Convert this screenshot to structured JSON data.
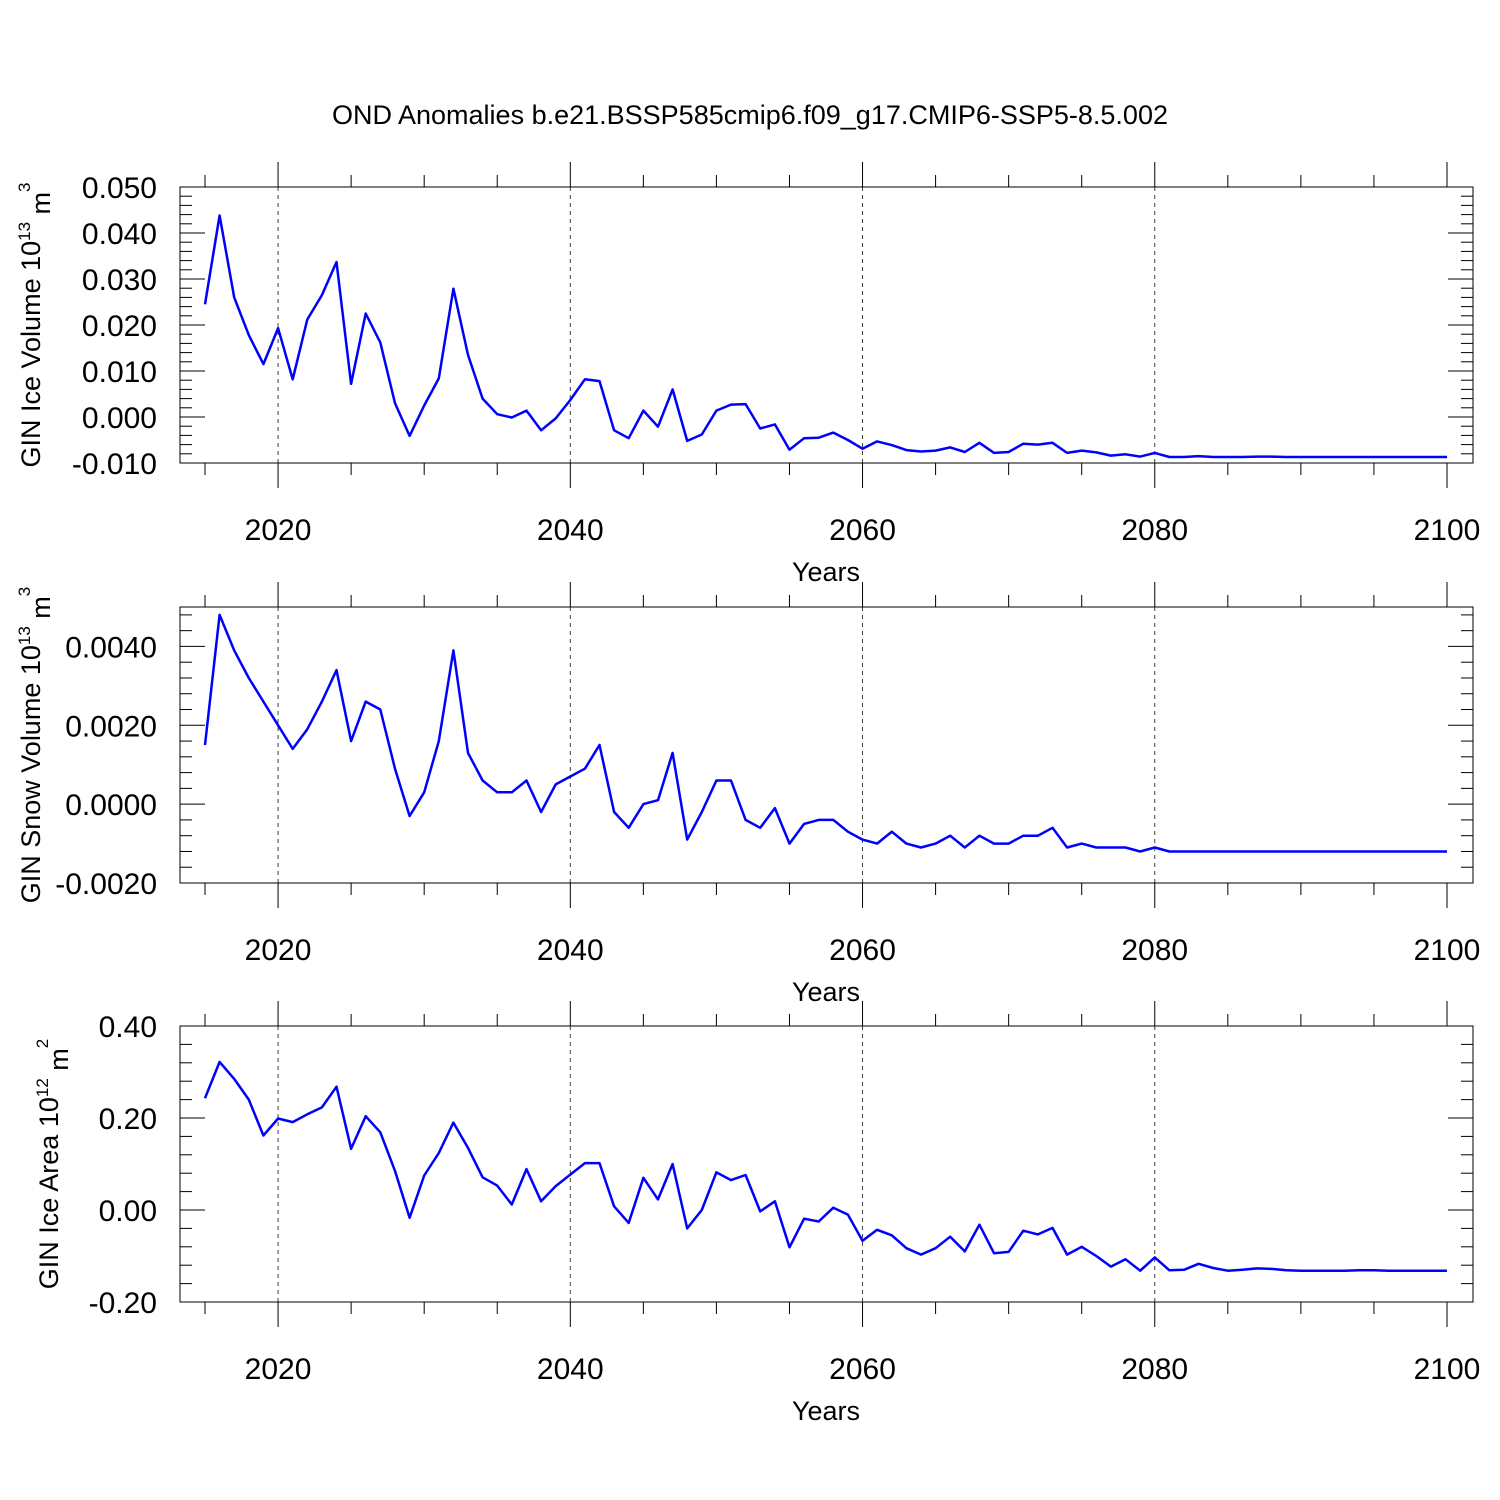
{
  "title": "OND Anomalies b.e21.BSSP585cmip6.f09_g17.CMIP6-SSP5-8.5.002",
  "line_color": "#0000ff",
  "chart_data": [
    {
      "type": "line",
      "ylabel": "GIN Ice Volume 10",
      "ylabel_exp": "13",
      "ylabel_unit": " m",
      "ylabel_unit_exp": "3",
      "xlabel": "Years",
      "xlim": [
        2015,
        2100
      ],
      "ylim": [
        -0.01,
        0.05
      ],
      "xticks": [
        2020,
        2040,
        2060,
        2080,
        2100
      ],
      "xtick_labels": [
        "2020",
        "2040",
        "2060",
        "2080",
        "2100"
      ],
      "yticks": [
        -0.01,
        0.0,
        0.01,
        0.02,
        0.03,
        0.04,
        0.05
      ],
      "ytick_labels": [
        "-0.010",
        "0.000",
        "0.010",
        "0.020",
        "0.030",
        "0.040",
        "0.050"
      ],
      "grid": "vertical dashed at major x ticks",
      "x": [
        2015,
        2016,
        2017,
        2018,
        2019,
        2020,
        2021,
        2022,
        2023,
        2024,
        2025,
        2026,
        2027,
        2028,
        2029,
        2030,
        2031,
        2032,
        2033,
        2034,
        2035,
        2036,
        2037,
        2038,
        2039,
        2040,
        2041,
        2042,
        2043,
        2044,
        2045,
        2046,
        2047,
        2048,
        2049,
        2050,
        2051,
        2052,
        2053,
        2054,
        2055,
        2056,
        2057,
        2058,
        2059,
        2060,
        2061,
        2062,
        2063,
        2064,
        2065,
        2066,
        2067,
        2068,
        2069,
        2070,
        2071,
        2072,
        2073,
        2074,
        2075,
        2076,
        2077,
        2078,
        2079,
        2080,
        2081,
        2082,
        2083,
        2084,
        2085,
        2086,
        2087,
        2088,
        2089,
        2090,
        2091,
        2092,
        2093,
        2094,
        2095,
        2096,
        2097,
        2098,
        2099,
        2100
      ],
      "values": [
        0.0245,
        0.0438,
        0.026,
        0.0178,
        0.0115,
        0.0193,
        0.0082,
        0.0212,
        0.0265,
        0.0337,
        0.0072,
        0.0225,
        0.0162,
        0.003,
        -0.0041,
        0.0025,
        0.0084,
        0.0279,
        0.0135,
        0.004,
        0.0006,
        -0.0001,
        0.0014,
        -0.0029,
        -0.0003,
        0.0037,
        0.0082,
        0.0078,
        -0.0029,
        -0.0046,
        0.0014,
        -0.0021,
        0.006,
        -0.0052,
        -0.0038,
        0.0014,
        0.0027,
        0.0028,
        -0.0025,
        -0.0016,
        -0.0071,
        -0.0046,
        -0.0045,
        -0.0034,
        -0.005,
        -0.0069,
        -0.0053,
        -0.0061,
        -0.0072,
        -0.0075,
        -0.0073,
        -0.0066,
        -0.0076,
        -0.0056,
        -0.0078,
        -0.0076,
        -0.0058,
        -0.006,
        -0.0056,
        -0.0078,
        -0.0073,
        -0.0077,
        -0.0084,
        -0.0081,
        -0.0086,
        -0.0078,
        -0.0087,
        -0.0087,
        -0.0085,
        -0.0087,
        -0.0087,
        -0.0087,
        -0.0086,
        -0.0086,
        -0.0087,
        -0.0087,
        -0.0087,
        -0.0087,
        -0.0087,
        -0.0087,
        -0.0087,
        -0.0087,
        -0.0087,
        -0.0087,
        -0.0087,
        -0.0087
      ]
    },
    {
      "type": "line",
      "ylabel": "GIN Snow Volume 10",
      "ylabel_exp": "13",
      "ylabel_unit": " m",
      "ylabel_unit_exp": "3",
      "xlabel": "Years",
      "xlim": [
        2015,
        2100
      ],
      "ylim": [
        -0.002,
        0.005
      ],
      "xticks": [
        2020,
        2040,
        2060,
        2080,
        2100
      ],
      "xtick_labels": [
        "2020",
        "2040",
        "2060",
        "2080",
        "2100"
      ],
      "yticks": [
        -0.002,
        0.0,
        0.002,
        0.004
      ],
      "ytick_labels": [
        "-0.0020",
        "0.0000",
        "0.0020",
        "0.0040"
      ],
      "grid": "vertical dashed at major x ticks",
      "x": [
        2015,
        2016,
        2017,
        2018,
        2019,
        2020,
        2021,
        2022,
        2023,
        2024,
        2025,
        2026,
        2027,
        2028,
        2029,
        2030,
        2031,
        2032,
        2033,
        2034,
        2035,
        2036,
        2037,
        2038,
        2039,
        2040,
        2041,
        2042,
        2043,
        2044,
        2045,
        2046,
        2047,
        2048,
        2049,
        2050,
        2051,
        2052,
        2053,
        2054,
        2055,
        2056,
        2057,
        2058,
        2059,
        2060,
        2061,
        2062,
        2063,
        2064,
        2065,
        2066,
        2067,
        2068,
        2069,
        2070,
        2071,
        2072,
        2073,
        2074,
        2075,
        2076,
        2077,
        2078,
        2079,
        2080,
        2081,
        2082,
        2083,
        2084,
        2085,
        2086,
        2087,
        2088,
        2089,
        2090,
        2091,
        2092,
        2093,
        2094,
        2095,
        2096,
        2097,
        2098,
        2099,
        2100
      ],
      "values": [
        0.0015,
        0.0048,
        0.0039,
        0.0032,
        0.0026,
        0.002,
        0.0014,
        0.0019,
        0.0026,
        0.0034,
        0.0016,
        0.0026,
        0.0024,
        0.0009,
        -0.0003,
        0.0003,
        0.0016,
        0.0039,
        0.0013,
        0.0006,
        0.0003,
        0.0003,
        0.0006,
        -0.0002,
        0.0005,
        0.0007,
        0.0009,
        0.0015,
        -0.0002,
        -0.0006,
        0.0,
        0.0001,
        0.0013,
        -0.0009,
        -0.0002,
        0.0006,
        0.0006,
        -0.0004,
        -0.0006,
        -0.0001,
        -0.001,
        -0.0005,
        -0.0004,
        -0.0004,
        -0.0007,
        -0.0009,
        -0.001,
        -0.0007,
        -0.001,
        -0.0011,
        -0.001,
        -0.0008,
        -0.0011,
        -0.0008,
        -0.001,
        -0.001,
        -0.0008,
        -0.0008,
        -0.0006,
        -0.0011,
        -0.001,
        -0.0011,
        -0.0011,
        -0.0011,
        -0.0012,
        -0.0011,
        -0.0012,
        -0.0012,
        -0.0012,
        -0.0012,
        -0.0012,
        -0.0012,
        -0.0012,
        -0.0012,
        -0.0012,
        -0.0012,
        -0.0012,
        -0.0012,
        -0.0012,
        -0.0012,
        -0.0012,
        -0.0012,
        -0.0012,
        -0.0012,
        -0.0012,
        -0.0012
      ]
    },
    {
      "type": "line",
      "ylabel": "GIN Ice Area 10",
      "ylabel_exp": "12",
      "ylabel_unit": " m",
      "ylabel_unit_exp": "2",
      "xlabel": "Years",
      "xlim": [
        2015,
        2100
      ],
      "ylim": [
        -0.2,
        0.4
      ],
      "xticks": [
        2020,
        2040,
        2060,
        2080,
        2100
      ],
      "xtick_labels": [
        "2020",
        "2040",
        "2060",
        "2080",
        "2100"
      ],
      "yticks": [
        -0.2,
        0.0,
        0.2,
        0.4
      ],
      "ytick_labels": [
        "-0.20",
        "0.00",
        "0.20",
        "0.40"
      ],
      "grid": "vertical dashed at major x ticks",
      "x": [
        2015,
        2016,
        2017,
        2018,
        2019,
        2020,
        2021,
        2022,
        2023,
        2024,
        2025,
        2026,
        2027,
        2028,
        2029,
        2030,
        2031,
        2032,
        2033,
        2034,
        2035,
        2036,
        2037,
        2038,
        2039,
        2040,
        2041,
        2042,
        2043,
        2044,
        2045,
        2046,
        2047,
        2048,
        2049,
        2050,
        2051,
        2052,
        2053,
        2054,
        2055,
        2056,
        2057,
        2058,
        2059,
        2060,
        2061,
        2062,
        2063,
        2064,
        2065,
        2066,
        2067,
        2068,
        2069,
        2070,
        2071,
        2072,
        2073,
        2074,
        2075,
        2076,
        2077,
        2078,
        2079,
        2080,
        2081,
        2082,
        2083,
        2084,
        2085,
        2086,
        2087,
        2088,
        2089,
        2090,
        2091,
        2092,
        2093,
        2094,
        2095,
        2096,
        2097,
        2098,
        2099,
        2100
      ],
      "values": [
        0.243,
        0.322,
        0.285,
        0.24,
        0.162,
        0.199,
        0.191,
        0.208,
        0.223,
        0.268,
        0.133,
        0.204,
        0.169,
        0.085,
        -0.017,
        0.075,
        0.124,
        0.19,
        0.135,
        0.071,
        0.053,
        0.012,
        0.089,
        0.019,
        0.052,
        0.077,
        0.102,
        0.102,
        0.008,
        -0.028,
        0.07,
        0.023,
        0.1,
        -0.04,
        0.0,
        0.082,
        0.065,
        0.076,
        -0.003,
        0.019,
        -0.081,
        -0.019,
        -0.025,
        0.005,
        -0.01,
        -0.067,
        -0.043,
        -0.055,
        -0.083,
        -0.097,
        -0.083,
        -0.058,
        -0.09,
        -0.032,
        -0.094,
        -0.091,
        -0.045,
        -0.053,
        -0.039,
        -0.097,
        -0.08,
        -0.1,
        -0.123,
        -0.107,
        -0.132,
        -0.103,
        -0.131,
        -0.13,
        -0.117,
        -0.126,
        -0.132,
        -0.13,
        -0.127,
        -0.128,
        -0.131,
        -0.132,
        -0.132,
        -0.132,
        -0.132,
        -0.131,
        -0.131,
        -0.132,
        -0.132,
        -0.132,
        -0.132,
        -0.132
      ]
    }
  ]
}
